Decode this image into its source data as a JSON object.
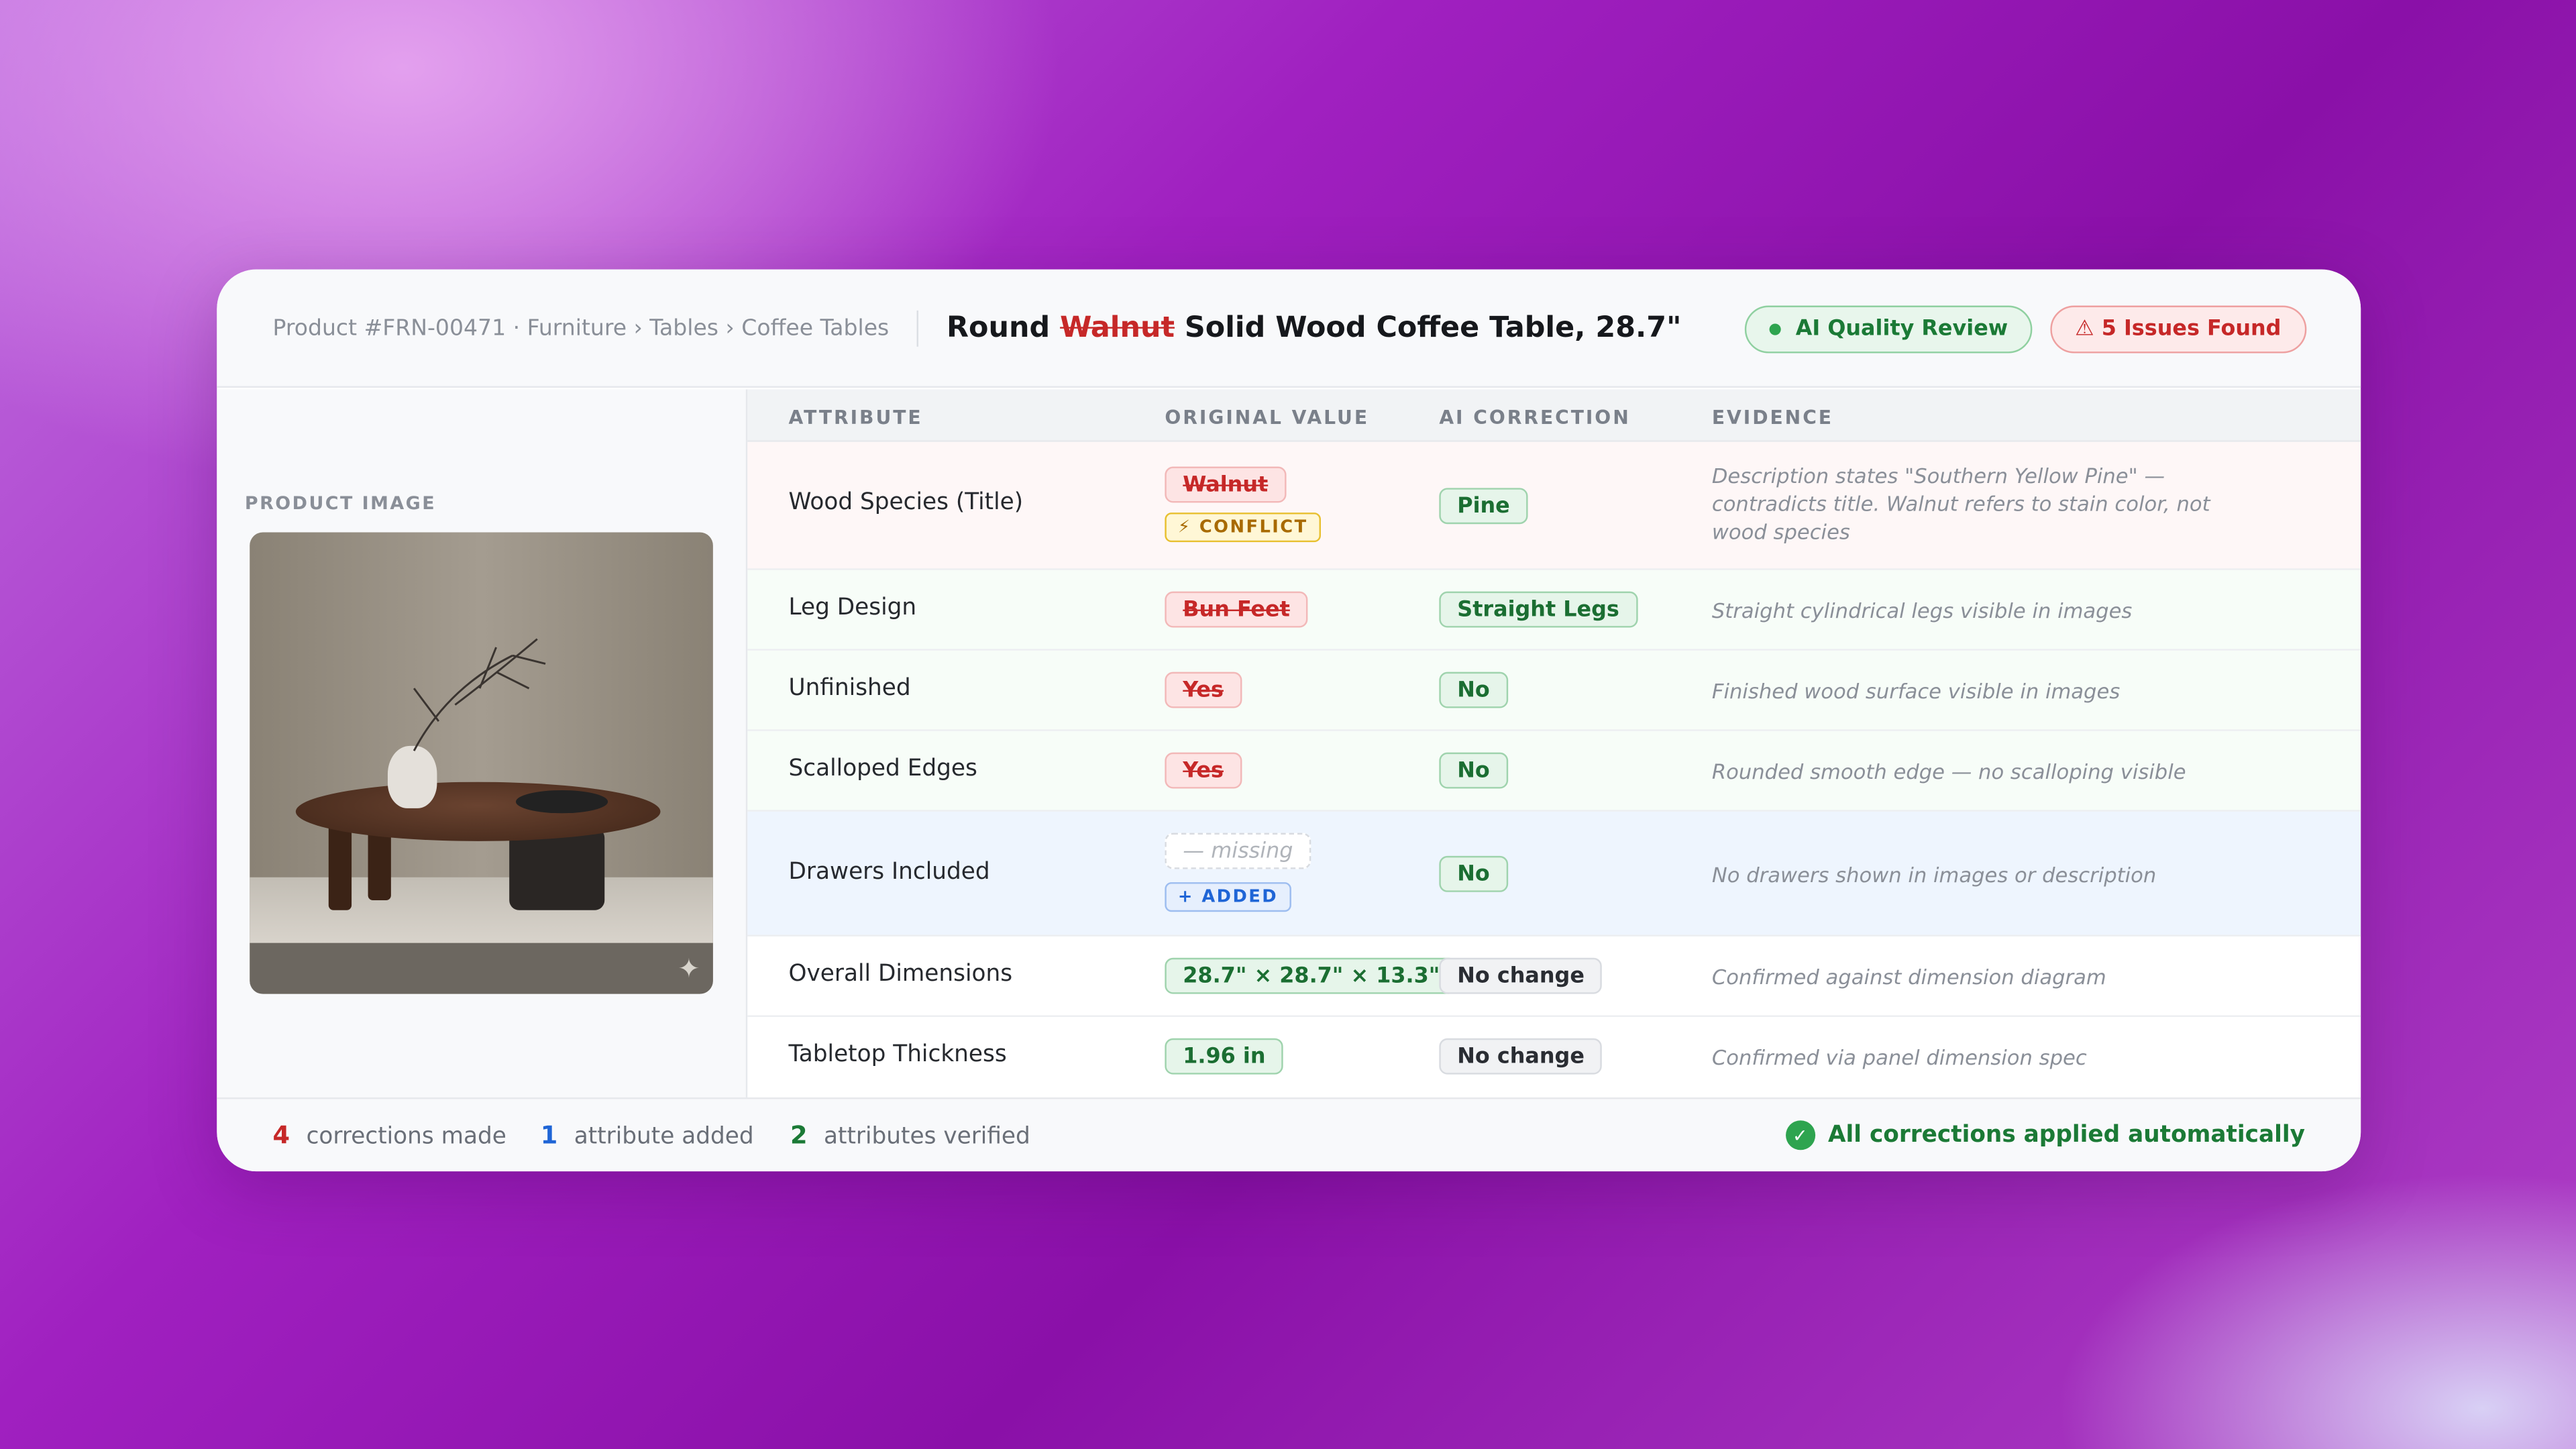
{
  "header": {
    "breadcrumb": "Product #FRN-00471 · Furniture › Tables › Coffee Tables",
    "title_prefix": "Round",
    "title_struck": "Walnut",
    "title_suffix": "Solid Wood Coffee Table, 28.7\"",
    "ai_badge": "AI Quality Review",
    "issues_badge": "⚠ 5 Issues Found"
  },
  "left": {
    "label": "PRODUCT IMAGE",
    "sparkle_icon": "✦"
  },
  "table": {
    "columns": [
      "ATTRIBUTE",
      "ORIGINAL VALUE",
      "AI CORRECTION",
      "EVIDENCE"
    ],
    "rows": [
      {
        "attribute": "Wood Species (Title)",
        "original": "Walnut",
        "tag": "⚡ CONFLICT",
        "correction": "Pine",
        "evidence": "Description states \"Southern Yellow Pine\" — contradicts title. Walnut refers to stain color, not wood species"
      },
      {
        "attribute": "Leg Design",
        "original": "Bun Feet",
        "correction": "Straight Legs",
        "evidence": "Straight cylindrical legs visible in images"
      },
      {
        "attribute": "Unfinished",
        "original": "Yes",
        "correction": "No",
        "evidence": "Finished wood surface visible in images"
      },
      {
        "attribute": "Scalloped Edges",
        "original": "Yes",
        "correction": "No",
        "evidence": "Rounded smooth edge — no scalloping visible"
      },
      {
        "attribute": "Drawers Included",
        "original": "— missing",
        "tag": "+ ADDED",
        "correction": "No",
        "evidence": "No drawers shown in images or description"
      },
      {
        "attribute": "Overall Dimensions",
        "original": "28.7\" × 28.7\" × 13.3\"",
        "correction": "No change",
        "evidence": "Confirmed against dimension diagram"
      },
      {
        "attribute": "Tabletop Thickness",
        "original": "1.96 in",
        "correction": "No change",
        "evidence": "Confirmed via panel dimension spec"
      }
    ]
  },
  "footer": {
    "corrections_count": "4",
    "corrections_label": "corrections made",
    "added_count": "1",
    "added_label": "attribute added",
    "verified_count": "2",
    "verified_label": "attributes verified",
    "status": "All corrections applied automatically",
    "check_icon": "✓"
  },
  "colors": {
    "error": "#c62828",
    "success": "#1b7a36",
    "info": "#1f65d6",
    "warning": "#a86a00"
  }
}
